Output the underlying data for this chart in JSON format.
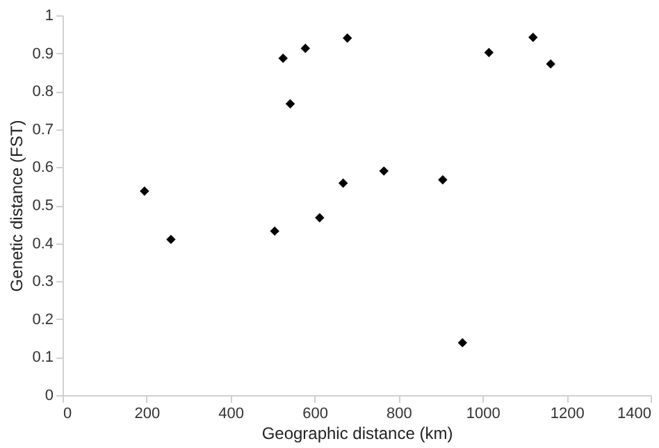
{
  "chart_data": {
    "type": "scatter",
    "xlabel": "Geographic distance (km)",
    "ylabel": "Genetic distance (FST)",
    "x": [
      195,
      258,
      505,
      525,
      542,
      578,
      612,
      668,
      678,
      765,
      905,
      952,
      1015,
      1120,
      1162
    ],
    "series": [
      {
        "color": "#000000",
        "values": [
          0.537,
          0.41,
          0.432,
          0.887,
          0.767,
          0.913,
          0.467,
          0.558,
          0.94,
          0.59,
          0.567,
          0.138,
          0.902,
          0.942,
          0.872
        ]
      }
    ],
    "xlim": [
      0,
      1400
    ],
    "xticks": [
      0,
      200,
      400,
      600,
      800,
      1000,
      1200,
      1400
    ],
    "ylim": [
      0,
      1
    ],
    "yticks": [
      0,
      0.1,
      0.2,
      0.3,
      0.4,
      0.5,
      0.6,
      0.7,
      0.8,
      0.9,
      1
    ],
    "marker": "diamond",
    "grid": false
  }
}
